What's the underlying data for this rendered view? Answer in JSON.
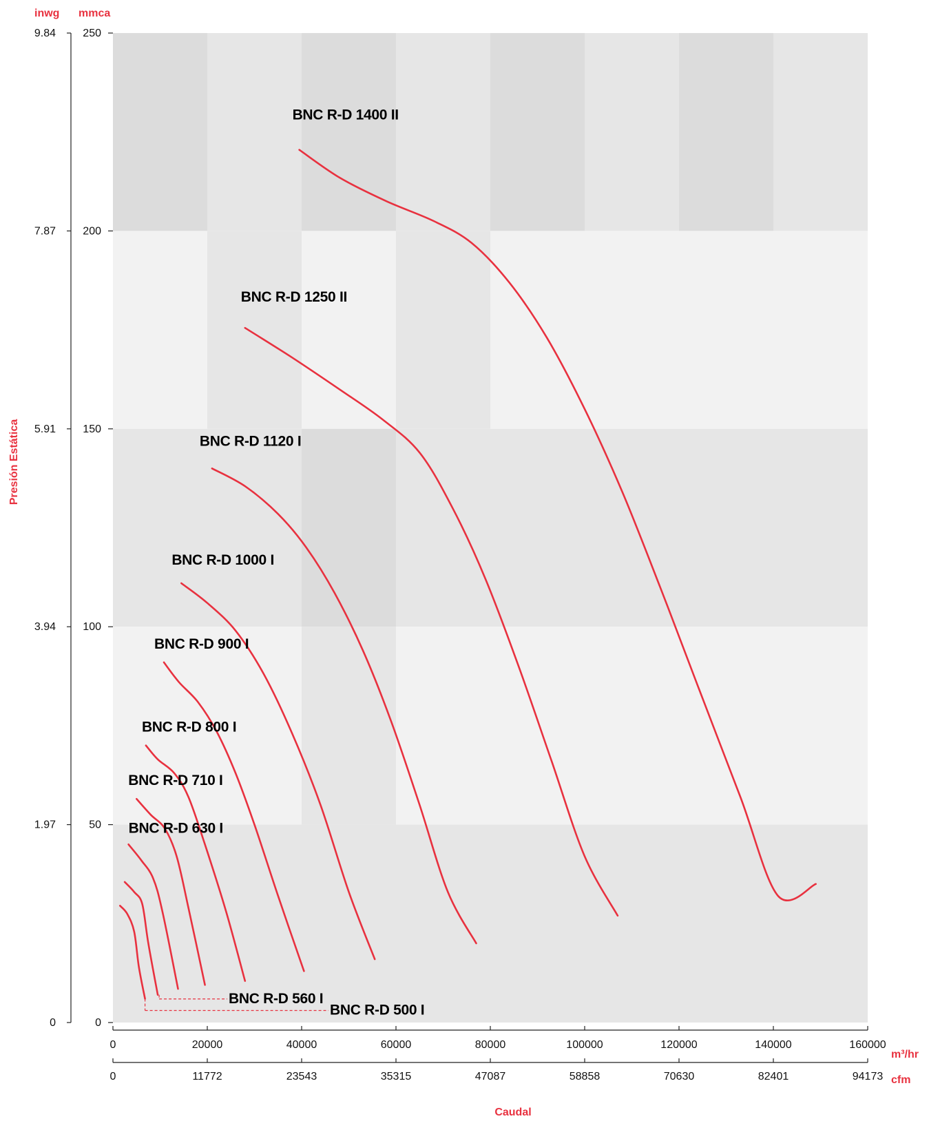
{
  "chart_data": {
    "type": "line",
    "title": "",
    "ylabel": "Presión Estática",
    "xlabel": "Caudal",
    "colors": {
      "accent": "#e8313f",
      "axis": "#222222",
      "band_dark": "#dcdcdc",
      "band_light": "#f2f2f2",
      "band_mid": "#e6e6e6"
    },
    "grid": true,
    "y_axes": {
      "left_unit": "inwg",
      "left_ticks": [
        "9.84",
        "7.87",
        "5.91",
        "3.94",
        "1.97",
        "0"
      ],
      "right_unit": "mmca",
      "right_ticks": [
        "250",
        "200",
        "150",
        "100",
        "50",
        "0"
      ],
      "ylim": [
        0,
        250
      ]
    },
    "x_axes": {
      "primary_unit": "m³/hr",
      "primary_ticks": [
        "0",
        "20000",
        "40000",
        "60000",
        "80000",
        "100000",
        "120000",
        "140000",
        "160000"
      ],
      "secondary_unit": "cfm",
      "secondary_ticks": [
        "0",
        "11772",
        "23543",
        "35315",
        "47087",
        "58858",
        "70630",
        "82401",
        "94173"
      ],
      "xlim": [
        0,
        160000
      ]
    },
    "series": [
      {
        "name": "BNC R-D 500 I",
        "points": [
          [
            1500,
            29.5
          ],
          [
            3000,
            27.5
          ],
          [
            4500,
            23
          ],
          [
            5500,
            14
          ],
          [
            6800,
            6
          ]
        ]
      },
      {
        "name": "BNC R-D 560 I",
        "points": [
          [
            2500,
            35.5
          ],
          [
            4500,
            33
          ],
          [
            6200,
            30
          ],
          [
            7500,
            20
          ],
          [
            9500,
            7
          ]
        ]
      },
      {
        "name": "BNC R-D 630 I",
        "points": [
          [
            3300,
            45
          ],
          [
            6000,
            41
          ],
          [
            8500,
            36.5
          ],
          [
            10500,
            28
          ],
          [
            13800,
            8.5
          ]
        ]
      },
      {
        "name": "BNC R-D 710 I",
        "points": [
          [
            5000,
            56.5
          ],
          [
            8000,
            52.5
          ],
          [
            11000,
            49
          ],
          [
            13500,
            42
          ],
          [
            16000,
            29
          ],
          [
            19500,
            9.5
          ]
        ]
      },
      {
        "name": "BNC R-D 800 I",
        "points": [
          [
            7000,
            70
          ],
          [
            9500,
            66.5
          ],
          [
            13000,
            63
          ],
          [
            16000,
            57
          ],
          [
            19500,
            45
          ],
          [
            24000,
            28
          ],
          [
            28000,
            10.5
          ]
        ]
      },
      {
        "name": "BNC R-D 900 I",
        "points": [
          [
            10800,
            91
          ],
          [
            14000,
            86
          ],
          [
            18000,
            81
          ],
          [
            22000,
            73.5
          ],
          [
            26000,
            63
          ],
          [
            30000,
            50
          ],
          [
            35000,
            32
          ],
          [
            40500,
            13
          ]
        ]
      },
      {
        "name": "BNC R-D 1000 I",
        "points": [
          [
            14500,
            111
          ],
          [
            20000,
            106
          ],
          [
            26000,
            99
          ],
          [
            32000,
            88
          ],
          [
            38000,
            73
          ],
          [
            44000,
            55
          ],
          [
            50000,
            33
          ],
          [
            55500,
            16
          ]
        ]
      },
      {
        "name": "BNC R-D 1120 I",
        "points": [
          [
            21000,
            140
          ],
          [
            28000,
            135.5
          ],
          [
            35000,
            128.5
          ],
          [
            41000,
            120
          ],
          [
            47000,
            108.5
          ],
          [
            53000,
            94
          ],
          [
            59000,
            76
          ],
          [
            65000,
            55
          ],
          [
            71000,
            33
          ],
          [
            77000,
            20
          ]
        ]
      },
      {
        "name": "BNC R-D 1250 II",
        "points": [
          [
            28000,
            175.5
          ],
          [
            38000,
            168
          ],
          [
            48000,
            160
          ],
          [
            57000,
            152.5
          ],
          [
            65000,
            144
          ],
          [
            72000,
            130
          ],
          [
            79000,
            112
          ],
          [
            86000,
            90
          ],
          [
            93000,
            66
          ],
          [
            100000,
            42
          ],
          [
            107000,
            27
          ]
        ]
      },
      {
        "name": "BNC R-D 1400 II",
        "points": [
          [
            39500,
            220.5
          ],
          [
            48000,
            213.5
          ],
          [
            58000,
            207.5
          ],
          [
            68000,
            202.5
          ],
          [
            76000,
            197
          ],
          [
            84000,
            187
          ],
          [
            92000,
            173
          ],
          [
            100000,
            155
          ],
          [
            108000,
            134
          ],
          [
            116000,
            110
          ],
          [
            124000,
            85
          ],
          [
            133000,
            57
          ],
          [
            141000,
            32
          ],
          [
            149000,
            35
          ]
        ]
      }
    ],
    "label_series": [
      "BNC R-D 1400 II",
      "BNC R-D 1250 II",
      "BNC R-D 1120 I",
      "BNC R-D 1000 I",
      "BNC R-D 900 I",
      "BNC R-D 800 I",
      "BNC R-D 710 I",
      "BNC R-D 630 I",
      "BNC R-D 560 I",
      "BNC R-D 500 I"
    ]
  }
}
